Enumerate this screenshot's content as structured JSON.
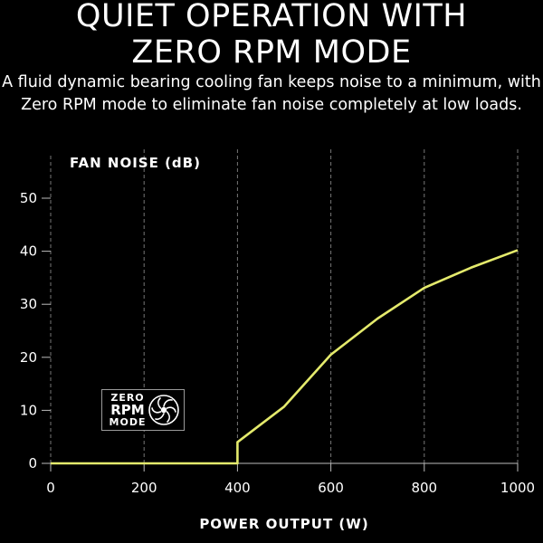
{
  "header": {
    "title_line1": "QUIET OPERATION WITH",
    "title_line2": "ZERO RPM MODE",
    "subtitle_line1": "A fluid dynamic bearing cooling fan keeps noise to a minimum, with",
    "subtitle_line2": "Zero RPM mode to eliminate fan noise completely at low loads."
  },
  "badge": {
    "line1": "ZERO",
    "line2": "RPM",
    "line3": "MODE",
    "icon": "fan-icon"
  },
  "colors": {
    "background": "#000000",
    "line": "#e4ea6c",
    "grid": "#777777",
    "text": "#ffffff"
  },
  "chart_data": {
    "type": "line",
    "ylabel": "FAN NOISE (dB)",
    "xlabel": "POWER OUTPUT (W)",
    "xlim": [
      0,
      1000
    ],
    "ylim": [
      0,
      50
    ],
    "x_ticks": [
      0,
      200,
      400,
      600,
      800,
      1000
    ],
    "y_ticks": [
      0,
      10,
      20,
      30,
      40,
      50
    ],
    "grid": "vertical dashed",
    "series": [
      {
        "x": [
          0,
          400,
          400,
          500,
          600,
          700,
          800,
          900,
          1000
        ],
        "y": [
          0,
          0,
          4,
          10.7,
          20.5,
          27.3,
          33.1,
          36.9,
          40.2
        ]
      }
    ]
  }
}
